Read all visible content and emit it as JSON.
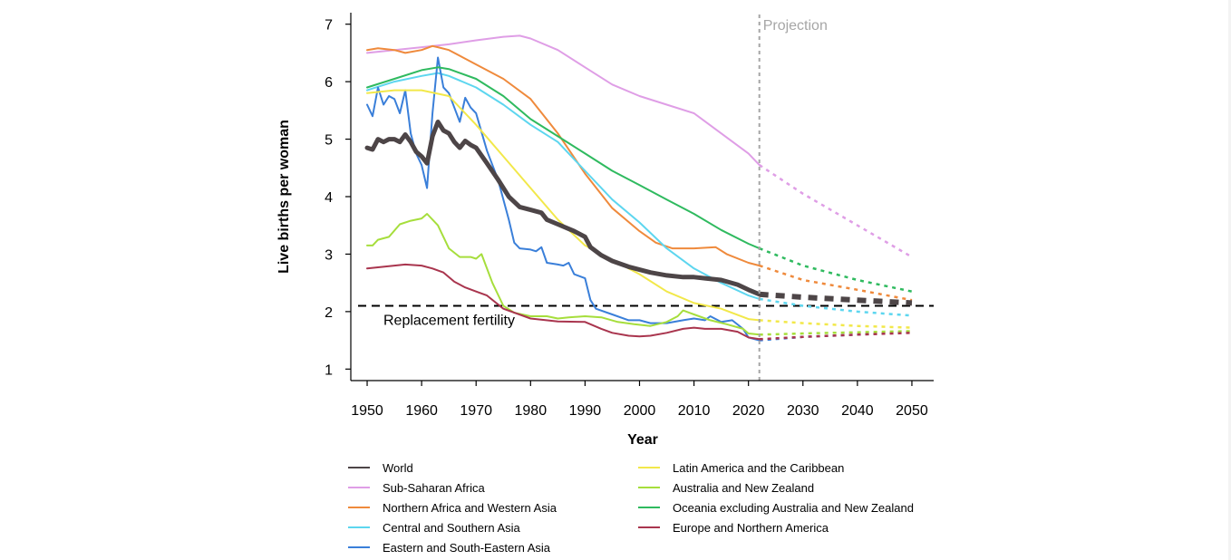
{
  "chart_data": {
    "type": "line",
    "title": "",
    "xlabel": "Year",
    "ylabel": "Live births per woman",
    "xlim": [
      1947,
      2054
    ],
    "ylim": [
      0.8,
      7.2
    ],
    "x_ticks": [
      1950,
      1960,
      1970,
      1980,
      1990,
      2000,
      2010,
      2020,
      2030,
      2040,
      2050
    ],
    "y_ticks": [
      1,
      2,
      3,
      4,
      5,
      6,
      7
    ],
    "grid": false,
    "legend_placement": "bottom",
    "annotations": {
      "projection_label": "Projection",
      "projection_year": 2022,
      "replacement_label": "Replacement fertility",
      "replacement_value": 2.1
    },
    "series": [
      {
        "name": "World",
        "color": "#4d4547",
        "emphasis": true,
        "x": [
          1950,
          1951,
          1952,
          1953,
          1954,
          1955,
          1956,
          1957,
          1958,
          1959,
          1960,
          1961,
          1962,
          1963,
          1964,
          1965,
          1966,
          1967,
          1968,
          1969,
          1970,
          1972,
          1974,
          1976,
          1978,
          1980,
          1982,
          1983,
          1985,
          1988,
          1990,
          1991,
          1993,
          1995,
          1998,
          2000,
          2002,
          2005,
          2008,
          2010,
          2012,
          2015,
          2018,
          2020,
          2022
        ],
        "y": [
          4.85,
          4.82,
          5.0,
          4.95,
          5.0,
          5.0,
          4.95,
          5.08,
          4.95,
          4.78,
          4.7,
          4.58,
          5.05,
          5.3,
          5.15,
          5.1,
          4.95,
          4.85,
          4.97,
          4.9,
          4.85,
          4.58,
          4.3,
          4.0,
          3.82,
          3.77,
          3.72,
          3.6,
          3.52,
          3.4,
          3.3,
          3.12,
          2.98,
          2.88,
          2.78,
          2.73,
          2.68,
          2.63,
          2.6,
          2.6,
          2.58,
          2.55,
          2.47,
          2.38,
          2.3
        ],
        "projection_x": [
          2022,
          2030,
          2040,
          2050
        ],
        "projection_y": [
          2.3,
          2.25,
          2.2,
          2.15
        ]
      },
      {
        "name": "Sub-Saharan Africa",
        "color": "#df9ee6",
        "x": [
          1950,
          1955,
          1960,
          1965,
          1970,
          1975,
          1978,
          1980,
          1985,
          1990,
          1995,
          2000,
          2005,
          2010,
          2015,
          2020,
          2022
        ],
        "y": [
          6.5,
          6.55,
          6.6,
          6.65,
          6.72,
          6.78,
          6.8,
          6.75,
          6.55,
          6.25,
          5.95,
          5.75,
          5.6,
          5.45,
          5.1,
          4.75,
          4.55
        ],
        "projection_x": [
          2022,
          2030,
          2040,
          2050
        ],
        "projection_y": [
          4.55,
          4.05,
          3.5,
          2.95
        ]
      },
      {
        "name": "Northern Africa and Western Asia",
        "color": "#ef8a3c",
        "x": [
          1950,
          1952,
          1955,
          1957,
          1960,
          1962,
          1963,
          1965,
          1970,
          1975,
          1980,
          1985,
          1990,
          1995,
          2000,
          2003,
          2006,
          2010,
          2014,
          2016,
          2020,
          2022
        ],
        "y": [
          6.55,
          6.58,
          6.55,
          6.5,
          6.55,
          6.62,
          6.6,
          6.55,
          6.3,
          6.05,
          5.7,
          5.1,
          4.4,
          3.8,
          3.4,
          3.2,
          3.1,
          3.1,
          3.12,
          3.0,
          2.85,
          2.8
        ],
        "projection_x": [
          2022,
          2030,
          2040,
          2050
        ],
        "projection_y": [
          2.8,
          2.55,
          2.38,
          2.2
        ]
      },
      {
        "name": "Central and Southern Asia",
        "color": "#5dd6ef",
        "x": [
          1950,
          1955,
          1960,
          1963,
          1965,
          1970,
          1975,
          1980,
          1985,
          1990,
          1995,
          2000,
          2005,
          2010,
          2015,
          2020,
          2022
        ],
        "y": [
          5.85,
          6.0,
          6.1,
          6.15,
          6.1,
          5.9,
          5.6,
          5.25,
          4.95,
          4.45,
          3.95,
          3.55,
          3.1,
          2.75,
          2.5,
          2.28,
          2.22
        ],
        "projection_x": [
          2022,
          2030,
          2040,
          2050
        ],
        "projection_y": [
          2.22,
          2.1,
          2.0,
          1.93
        ]
      },
      {
        "name": "Eastern and South-Eastern Asia",
        "color": "#3a7fd9",
        "x": [
          1950,
          1951,
          1952,
          1953,
          1954,
          1955,
          1956,
          1957,
          1958,
          1959,
          1960,
          1961,
          1962,
          1963,
          1964,
          1965,
          1966,
          1967,
          1968,
          1969,
          1970,
          1972,
          1974,
          1976,
          1977,
          1978,
          1980,
          1981,
          1982,
          1983,
          1985,
          1986,
          1987,
          1988,
          1990,
          1991,
          1992,
          1995,
          1998,
          2000,
          2002,
          2005,
          2008,
          2010,
          2012,
          2013,
          2015,
          2017,
          2019,
          2020,
          2022
        ],
        "y": [
          5.6,
          5.4,
          5.9,
          5.6,
          5.75,
          5.7,
          5.45,
          5.85,
          5.1,
          4.75,
          4.55,
          4.15,
          5.45,
          6.42,
          5.9,
          5.8,
          5.55,
          5.3,
          5.72,
          5.55,
          5.45,
          4.8,
          4.3,
          3.6,
          3.2,
          3.1,
          3.08,
          3.05,
          3.12,
          2.85,
          2.82,
          2.8,
          2.85,
          2.65,
          2.58,
          2.2,
          2.05,
          1.95,
          1.85,
          1.85,
          1.8,
          1.8,
          1.85,
          1.88,
          1.85,
          1.92,
          1.82,
          1.85,
          1.7,
          1.55,
          1.5
        ],
        "projection_x": [
          2022,
          2030,
          2040,
          2050
        ],
        "projection_y": [
          1.5,
          1.56,
          1.6,
          1.64
        ]
      },
      {
        "name": "Latin America and the Caribbean",
        "color": "#f2e84a",
        "x": [
          1950,
          1955,
          1960,
          1965,
          1970,
          1975,
          1980,
          1985,
          1990,
          1995,
          2000,
          2005,
          2010,
          2015,
          2020,
          2022
        ],
        "y": [
          5.8,
          5.85,
          5.85,
          5.75,
          5.25,
          4.7,
          4.15,
          3.6,
          3.15,
          2.9,
          2.65,
          2.35,
          2.15,
          2.05,
          1.87,
          1.85
        ],
        "projection_x": [
          2022,
          2030,
          2040,
          2050
        ],
        "projection_y": [
          1.85,
          1.8,
          1.75,
          1.72
        ]
      },
      {
        "name": "Australia and New Zealand",
        "color": "#a6de3c",
        "x": [
          1950,
          1951,
          1952,
          1954,
          1956,
          1958,
          1960,
          1961,
          1963,
          1965,
          1967,
          1969,
          1970,
          1971,
          1973,
          1975,
          1977,
          1980,
          1983,
          1985,
          1987,
          1990,
          1993,
          1996,
          1999,
          2002,
          2005,
          2007,
          2008,
          2010,
          2013,
          2016,
          2019,
          2020,
          2022
        ],
        "y": [
          3.15,
          3.15,
          3.25,
          3.3,
          3.52,
          3.58,
          3.62,
          3.7,
          3.5,
          3.1,
          2.95,
          2.95,
          2.92,
          3.0,
          2.5,
          2.1,
          1.98,
          1.92,
          1.92,
          1.88,
          1.9,
          1.92,
          1.9,
          1.82,
          1.78,
          1.75,
          1.82,
          1.92,
          2.02,
          1.95,
          1.85,
          1.78,
          1.7,
          1.62,
          1.6
        ],
        "projection_x": [
          2022,
          2030,
          2040,
          2050
        ],
        "projection_y": [
          1.6,
          1.62,
          1.64,
          1.66
        ]
      },
      {
        "name": "Oceania excluding Australia and New Zealand",
        "color": "#2fba5f",
        "x": [
          1950,
          1955,
          1960,
          1963,
          1965,
          1970,
          1975,
          1980,
          1985,
          1990,
          1995,
          2000,
          2005,
          2010,
          2015,
          2020,
          2022
        ],
        "y": [
          5.9,
          6.05,
          6.2,
          6.25,
          6.22,
          6.05,
          5.75,
          5.35,
          5.05,
          4.75,
          4.45,
          4.2,
          3.95,
          3.7,
          3.42,
          3.18,
          3.1
        ],
        "projection_x": [
          2022,
          2030,
          2040,
          2050
        ],
        "projection_y": [
          3.1,
          2.8,
          2.55,
          2.35
        ]
      },
      {
        "name": "Europe and Northern America",
        "color": "#a9354e",
        "x": [
          1950,
          1952,
          1955,
          1957,
          1960,
          1962,
          1964,
          1966,
          1968,
          1970,
          1972,
          1975,
          1980,
          1985,
          1990,
          1993,
          1995,
          1998,
          2000,
          2002,
          2005,
          2008,
          2010,
          2012,
          2015,
          2018,
          2020,
          2022
        ],
        "y": [
          2.75,
          2.77,
          2.8,
          2.82,
          2.8,
          2.75,
          2.68,
          2.52,
          2.42,
          2.35,
          2.28,
          2.05,
          1.88,
          1.83,
          1.82,
          1.7,
          1.63,
          1.58,
          1.57,
          1.58,
          1.63,
          1.7,
          1.72,
          1.7,
          1.7,
          1.65,
          1.55,
          1.52
        ],
        "projection_x": [
          2022,
          2030,
          2040,
          2050
        ],
        "projection_y": [
          1.52,
          1.56,
          1.6,
          1.63
        ]
      }
    ]
  }
}
